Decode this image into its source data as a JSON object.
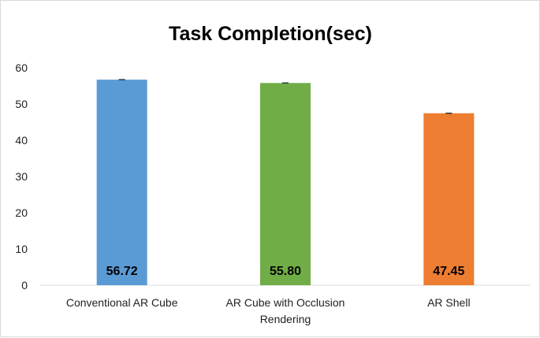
{
  "chart_data": {
    "type": "bar",
    "title": "Task Completion(sec)",
    "xlabel": "",
    "ylabel": "",
    "categories": [
      [
        "Conventional AR Cube"
      ],
      [
        "AR Cube with Occlusion",
        "Rendering"
      ],
      [
        "AR Shell"
      ]
    ],
    "values": [
      56.72,
      55.8,
      47.45
    ],
    "data_labels": [
      "56.72",
      "55.80",
      "47.45"
    ],
    "colors": [
      "#5b9bd5",
      "#70ad47",
      "#ed7d31"
    ],
    "ylim": [
      0,
      60
    ],
    "yticks": [
      0,
      10,
      20,
      30,
      40,
      50,
      60
    ],
    "error_bars": true,
    "grid": false,
    "legend": "none"
  }
}
